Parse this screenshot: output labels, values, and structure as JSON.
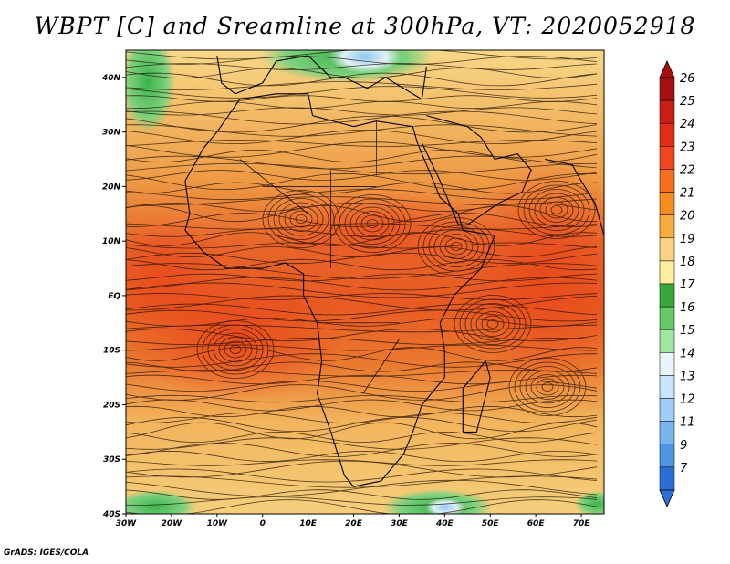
{
  "title": "WBPT [C] and Sreamline at 300hPa, VT: 2020052918",
  "credit": "GrADS: IGES/COLA",
  "map": {
    "lat_labels": [
      "40N",
      "30N",
      "20N",
      "10N",
      "EQ",
      "10S",
      "20S",
      "30S",
      "40S"
    ],
    "lon_labels": [
      "30W",
      "20W",
      "10W",
      "0",
      "10E",
      "20E",
      "30E",
      "40E",
      "50E",
      "60E",
      "70E"
    ],
    "lat_range": [
      -40,
      45
    ],
    "lon_range": [
      -30,
      75
    ],
    "field_description_colors": {
      "warm_core": "#e8521f",
      "mid": "#f09a3a",
      "cool": "#f7d27a",
      "green": "#4cbe4c",
      "blue": "#8ec8f0"
    }
  },
  "colorbar": {
    "labels": [
      "26",
      "25",
      "24",
      "23",
      "22",
      "21",
      "20",
      "19",
      "18",
      "17",
      "16",
      "15",
      "14",
      "13",
      "12",
      "11",
      "9",
      "7"
    ],
    "colors": [
      "#a50f0f",
      "#c81e14",
      "#e02d14",
      "#f0461e",
      "#f56e1e",
      "#f78c1e",
      "#f9aa3c",
      "#fbd285",
      "#fcee9e",
      "#38a838",
      "#64c864",
      "#a0e6a0",
      "#e6f5fa",
      "#c8e6fa",
      "#a0cdf5",
      "#78b4f0",
      "#5096e6",
      "#2a6fd6"
    ]
  }
}
